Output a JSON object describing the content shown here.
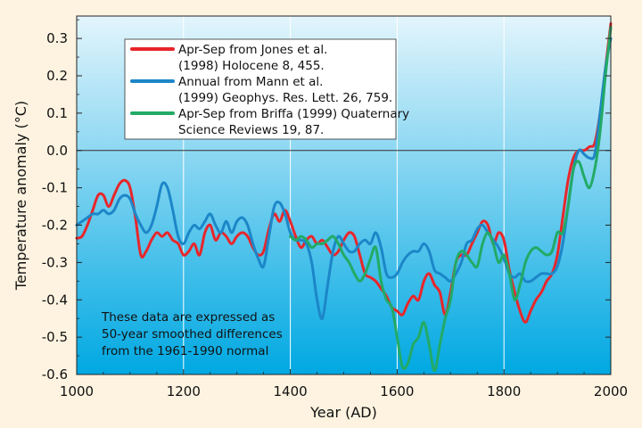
{
  "chart_data": {
    "type": "line",
    "xlabel": "Year (AD)",
    "ylabel": "Temperature anomaly (°C)",
    "xlim": [
      1000,
      2000
    ],
    "ylim": [
      -0.6,
      0.35
    ],
    "x_ticks": [
      1000,
      1200,
      1400,
      1600,
      1800,
      2000
    ],
    "x_tick_labels": [
      "1000",
      "1200",
      "1400",
      "1600",
      "1800",
      "2000"
    ],
    "y_ticks": [
      0.3,
      0.2,
      0.1,
      0.0,
      -0.1,
      -0.2,
      -0.3,
      -0.4,
      -0.5,
      -0.6
    ],
    "y_tick_labels": [
      "0.3",
      "0.2",
      "0.1",
      "0.0",
      "-0.1",
      "-0.2",
      "-0.3",
      "-0.4",
      "-0.5",
      "-0.6"
    ],
    "grid": "vertical lines at x ticks",
    "zero_line": true,
    "legend_position": "top-left",
    "annotation_lines": [
      "These data are expressed as",
      "50-year smoothed differences",
      "from the 1961-1990 normal"
    ],
    "colors": {
      "page_background": "#fdf3e0",
      "plot_top": "#e3f5fc",
      "plot_bottom": "#00a8e2",
      "grid": "#ffffff"
    },
    "series": [
      {
        "name": "Apr-Sep from Jones et al. (1998) Holocene 8, 455.",
        "legend_lines": [
          "Apr-Sep from Jones et al.",
          "(1998) Holocene 8, 455."
        ],
        "color": "#e8262b",
        "x": [
          1000,
          1010,
          1020,
          1030,
          1040,
          1050,
          1060,
          1070,
          1080,
          1090,
          1100,
          1110,
          1120,
          1130,
          1140,
          1150,
          1160,
          1170,
          1180,
          1190,
          1200,
          1210,
          1220,
          1230,
          1240,
          1250,
          1260,
          1270,
          1280,
          1290,
          1300,
          1310,
          1320,
          1330,
          1340,
          1350,
          1360,
          1370,
          1380,
          1390,
          1400,
          1410,
          1420,
          1430,
          1440,
          1450,
          1460,
          1470,
          1480,
          1490,
          1500,
          1510,
          1520,
          1530,
          1540,
          1550,
          1560,
          1570,
          1580,
          1590,
          1600,
          1610,
          1620,
          1630,
          1640,
          1650,
          1660,
          1670,
          1680,
          1690,
          1700,
          1710,
          1720,
          1730,
          1740,
          1750,
          1760,
          1770,
          1780,
          1790,
          1800,
          1810,
          1820,
          1830,
          1840,
          1850,
          1860,
          1870,
          1880,
          1890,
          1900,
          1910,
          1920,
          1930,
          1940,
          1950,
          1960,
          1970,
          1980,
          1990,
          2000
        ],
        "values": [
          -0.235,
          -0.23,
          -0.2,
          -0.16,
          -0.12,
          -0.12,
          -0.15,
          -0.12,
          -0.09,
          -0.08,
          -0.1,
          -0.18,
          -0.28,
          -0.27,
          -0.24,
          -0.22,
          -0.23,
          -0.22,
          -0.24,
          -0.25,
          -0.28,
          -0.27,
          -0.25,
          -0.28,
          -0.22,
          -0.2,
          -0.24,
          -0.22,
          -0.23,
          -0.25,
          -0.23,
          -0.22,
          -0.23,
          -0.26,
          -0.28,
          -0.27,
          -0.21,
          -0.17,
          -0.19,
          -0.16,
          -0.19,
          -0.23,
          -0.26,
          -0.24,
          -0.23,
          -0.25,
          -0.24,
          -0.26,
          -0.28,
          -0.27,
          -0.24,
          -0.22,
          -0.23,
          -0.28,
          -0.33,
          -0.34,
          -0.35,
          -0.37,
          -0.39,
          -0.42,
          -0.43,
          -0.44,
          -0.41,
          -0.39,
          -0.4,
          -0.35,
          -0.33,
          -0.36,
          -0.38,
          -0.44,
          -0.38,
          -0.3,
          -0.28,
          -0.28,
          -0.25,
          -0.22,
          -0.19,
          -0.2,
          -0.25,
          -0.22,
          -0.24,
          -0.32,
          -0.38,
          -0.43,
          -0.46,
          -0.43,
          -0.4,
          -0.38,
          -0.35,
          -0.33,
          -0.28,
          -0.18,
          -0.08,
          -0.02,
          0.0,
          0.0,
          0.01,
          0.02,
          0.1,
          0.22,
          0.34
        ]
      },
      {
        "name": "Annual from Mann et al. (1999) Geophys. Res. Lett. 26, 759.",
        "legend_lines": [
          "Annual from Mann et al.",
          "(1999) Geophys. Res. Lett. 26, 759."
        ],
        "color": "#1c86c8",
        "x": [
          1000,
          1010,
          1020,
          1030,
          1040,
          1050,
          1060,
          1070,
          1080,
          1090,
          1100,
          1110,
          1120,
          1130,
          1140,
          1150,
          1160,
          1170,
          1180,
          1190,
          1200,
          1210,
          1220,
          1230,
          1240,
          1250,
          1260,
          1270,
          1280,
          1290,
          1300,
          1310,
          1320,
          1330,
          1340,
          1350,
          1360,
          1370,
          1380,
          1390,
          1400,
          1410,
          1420,
          1430,
          1440,
          1450,
          1460,
          1470,
          1480,
          1490,
          1500,
          1510,
          1520,
          1530,
          1540,
          1550,
          1560,
          1570,
          1580,
          1590,
          1600,
          1610,
          1620,
          1630,
          1640,
          1650,
          1660,
          1670,
          1680,
          1690,
          1700,
          1710,
          1720,
          1730,
          1740,
          1750,
          1760,
          1770,
          1780,
          1790,
          1800,
          1810,
          1820,
          1830,
          1840,
          1850,
          1860,
          1870,
          1880,
          1890,
          1900,
          1910,
          1920,
          1930,
          1940,
          1950,
          1960,
          1970,
          1980,
          1990,
          2000
        ],
        "values": [
          -0.2,
          -0.19,
          -0.18,
          -0.17,
          -0.17,
          -0.16,
          -0.17,
          -0.16,
          -0.13,
          -0.12,
          -0.13,
          -0.17,
          -0.2,
          -0.22,
          -0.2,
          -0.15,
          -0.09,
          -0.1,
          -0.16,
          -0.23,
          -0.25,
          -0.22,
          -0.2,
          -0.21,
          -0.19,
          -0.17,
          -0.2,
          -0.22,
          -0.19,
          -0.22,
          -0.19,
          -0.18,
          -0.2,
          -0.25,
          -0.29,
          -0.31,
          -0.23,
          -0.15,
          -0.14,
          -0.17,
          -0.22,
          -0.24,
          -0.24,
          -0.25,
          -0.3,
          -0.4,
          -0.45,
          -0.36,
          -0.27,
          -0.23,
          -0.25,
          -0.27,
          -0.27,
          -0.25,
          -0.24,
          -0.25,
          -0.22,
          -0.26,
          -0.33,
          -0.34,
          -0.33,
          -0.3,
          -0.28,
          -0.27,
          -0.27,
          -0.25,
          -0.27,
          -0.32,
          -0.33,
          -0.34,
          -0.35,
          -0.33,
          -0.3,
          -0.25,
          -0.24,
          -0.21,
          -0.2,
          -0.22,
          -0.24,
          -0.26,
          -0.29,
          -0.33,
          -0.34,
          -0.33,
          -0.35,
          -0.35,
          -0.34,
          -0.33,
          -0.33,
          -0.33,
          -0.31,
          -0.25,
          -0.15,
          -0.05,
          0.0,
          -0.01,
          -0.02,
          -0.01,
          0.1,
          0.22,
          0.3
        ]
      },
      {
        "name": "Apr-Sep from Briffa (1999) Quaternary Science Reviews 19, 87.",
        "legend_lines": [
          "Apr-Sep from Briffa (1999) Quaternary",
          "Science Reviews 19, 87."
        ],
        "color": "#22aa66",
        "x": [
          1400,
          1410,
          1420,
          1430,
          1440,
          1450,
          1460,
          1470,
          1480,
          1490,
          1500,
          1510,
          1520,
          1530,
          1540,
          1550,
          1560,
          1570,
          1580,
          1590,
          1600,
          1610,
          1620,
          1630,
          1640,
          1650,
          1660,
          1670,
          1680,
          1690,
          1700,
          1710,
          1720,
          1730,
          1740,
          1750,
          1760,
          1770,
          1780,
          1790,
          1800,
          1810,
          1820,
          1830,
          1840,
          1850,
          1860,
          1870,
          1880,
          1890,
          1900,
          1910,
          1920,
          1930,
          1940,
          1950,
          1960,
          1970,
          1980,
          1990,
          2000
        ],
        "values": [
          -0.23,
          -0.24,
          -0.23,
          -0.24,
          -0.26,
          -0.25,
          -0.25,
          -0.24,
          -0.23,
          -0.25,
          -0.28,
          -0.3,
          -0.33,
          -0.35,
          -0.33,
          -0.29,
          -0.26,
          -0.35,
          -0.4,
          -0.42,
          -0.5,
          -0.58,
          -0.57,
          -0.52,
          -0.5,
          -0.46,
          -0.52,
          -0.59,
          -0.52,
          -0.45,
          -0.4,
          -0.3,
          -0.27,
          -0.28,
          -0.3,
          -0.31,
          -0.25,
          -0.22,
          -0.25,
          -0.3,
          -0.28,
          -0.33,
          -0.4,
          -0.36,
          -0.3,
          -0.27,
          -0.26,
          -0.27,
          -0.28,
          -0.27,
          -0.22,
          -0.22,
          -0.15,
          -0.05,
          -0.03,
          -0.07,
          -0.1,
          -0.05,
          0.05,
          0.2,
          0.33
        ]
      }
    ]
  }
}
